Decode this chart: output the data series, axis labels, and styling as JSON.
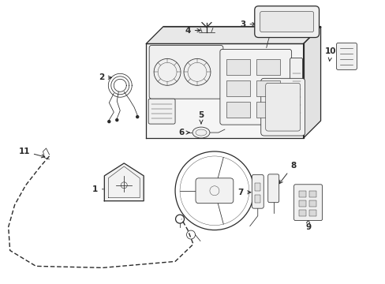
{
  "bg_color": "#ffffff",
  "line_color": "#2a2a2a",
  "lw_main": 0.9,
  "lw_thin": 0.55,
  "lw_label": 0.7,
  "figsize": [
    4.89,
    3.6
  ],
  "dpi": 100,
  "xlim": [
    0,
    4.89
  ],
  "ylim": [
    0,
    3.6
  ]
}
